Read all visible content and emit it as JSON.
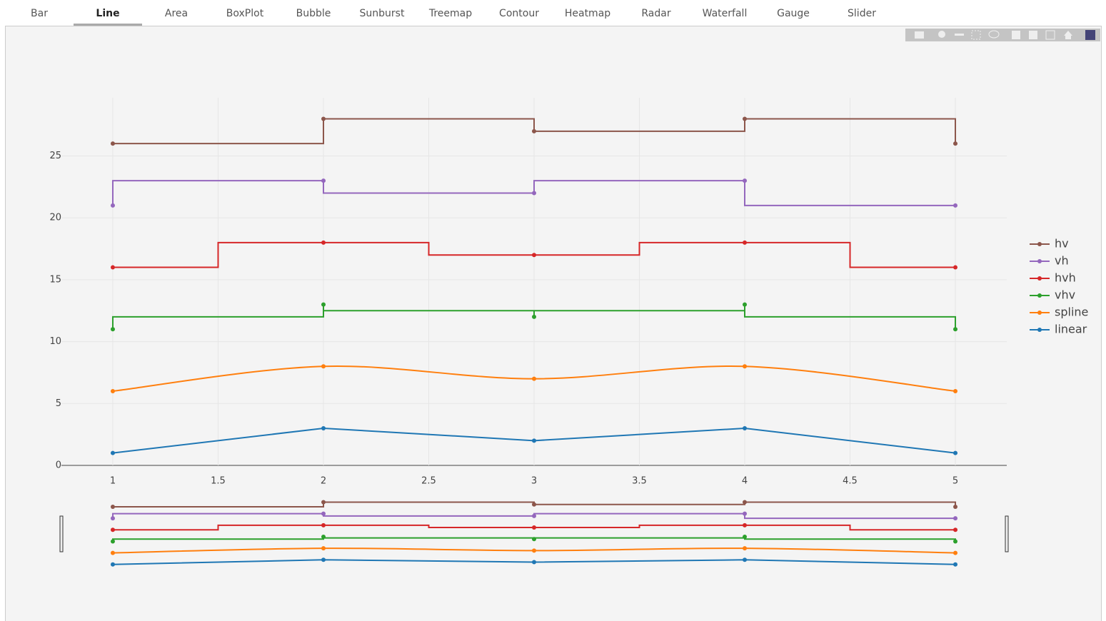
{
  "tabs": [
    "Bar",
    "Line",
    "Area",
    "BoxPlot",
    "Bubble",
    "Sunburst",
    "Treemap",
    "Contour",
    "Heatmap",
    "Radar",
    "Waterfall",
    "Gauge",
    "Slider"
  ],
  "active_tab": 1,
  "chart_data": {
    "type": "line",
    "x": [
      1,
      2,
      3,
      4,
      5
    ],
    "series": [
      {
        "name": "linear",
        "color": "#1f77b4",
        "shape": "linear",
        "values": [
          1,
          3,
          2,
          3,
          1
        ]
      },
      {
        "name": "spline",
        "color": "#ff7f0e",
        "shape": "spline",
        "values": [
          6,
          8,
          7,
          8,
          6
        ]
      },
      {
        "name": "vhv",
        "color": "#2ca02c",
        "shape": "vhv",
        "values": [
          11,
          13,
          12,
          13,
          11
        ]
      },
      {
        "name": "hvh",
        "color": "#d62728",
        "shape": "hvh",
        "values": [
          16,
          18,
          17,
          18,
          16
        ]
      },
      {
        "name": "vh",
        "color": "#9467bd",
        "shape": "vh",
        "values": [
          21,
          23,
          22,
          23,
          21
        ]
      },
      {
        "name": "hv",
        "color": "#8c564b",
        "shape": "hv",
        "values": [
          26,
          28,
          27,
          28,
          26
        ]
      }
    ],
    "xlim": [
      0.756,
      5.244
    ],
    "ylim": [
      0,
      29.7
    ],
    "xticks": [
      1,
      1.5,
      2,
      2.5,
      3,
      3.5,
      4,
      4.5,
      5
    ],
    "yticks": [
      0,
      5,
      10,
      15,
      20,
      25
    ],
    "grid": true,
    "legend": "right",
    "rangeslider": true
  }
}
